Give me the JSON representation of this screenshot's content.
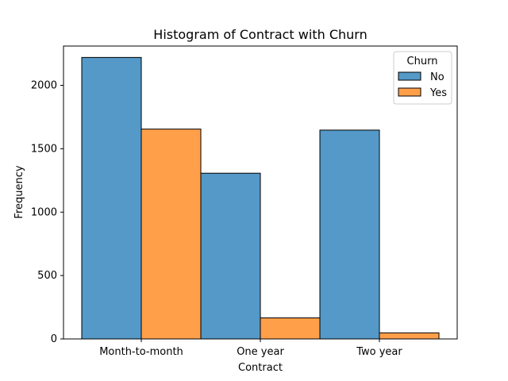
{
  "chart_data": {
    "type": "bar",
    "title": "Histogram of Contract with Churn",
    "xlabel": "Contract",
    "ylabel": "Frequency",
    "categories": [
      "Month-to-month",
      "One year",
      "Two year"
    ],
    "series": [
      {
        "name": "No",
        "values": [
          2220,
          1307,
          1647
        ],
        "color": "#5499c7"
      },
      {
        "name": "Yes",
        "values": [
          1655,
          166,
          48
        ],
        "color": "#ff9f4a"
      }
    ],
    "ylim": [
      0,
      2310
    ],
    "yticks": [
      0,
      500,
      1000,
      1500,
      2000
    ],
    "legend": {
      "title": "Churn",
      "placement": "top-right"
    },
    "grid": false
  }
}
